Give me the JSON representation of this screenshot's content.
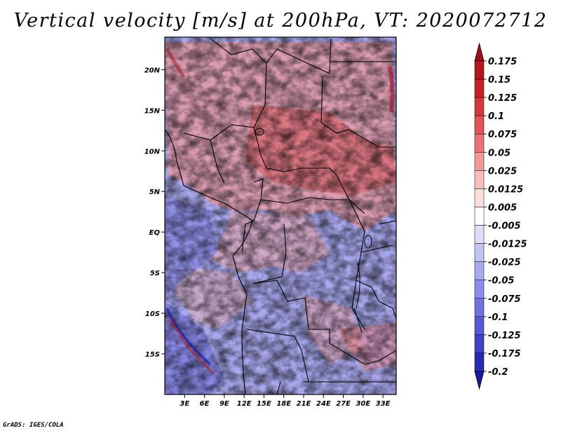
{
  "title": "Vertical velocity [m/s] at 200hPa, VT: 2020072712",
  "footer": "GrADS: IGES/COLA",
  "map": {
    "lat_labels": [
      "20N",
      "15N",
      "10N",
      "5N",
      "EQ",
      "5S",
      "10S",
      "15S"
    ],
    "lon_labels": [
      "3E",
      "6E",
      "9E",
      "12E",
      "15E",
      "18E",
      "21E",
      "24E",
      "27E",
      "30E",
      "33E"
    ],
    "lon_range": [
      0,
      35
    ],
    "lat_range": [
      -20,
      24
    ]
  },
  "colorbar": {
    "labels": [
      "0.175",
      "0.15",
      "0.125",
      "0.1",
      "0.075",
      "0.05",
      "0.025",
      "0.0125",
      "0.005",
      "-0.005",
      "-0.0125",
      "-0.025",
      "-0.05",
      "-0.075",
      "-0.1",
      "-0.125",
      "-0.175",
      "-0.2"
    ],
    "colors": [
      "#a10d1f",
      "#b2181b",
      "#c42326",
      "#d3383a",
      "#e05356",
      "#e87374",
      "#f0999b",
      "#f6bdbd",
      "#fbdfdf",
      "#ffffff",
      "#dedef9",
      "#c4c4f4",
      "#a9a9ef",
      "#8d8de8",
      "#7272df",
      "#5858d2",
      "#4141c2",
      "#2a2ab0",
      "#1818a0"
    ]
  }
}
